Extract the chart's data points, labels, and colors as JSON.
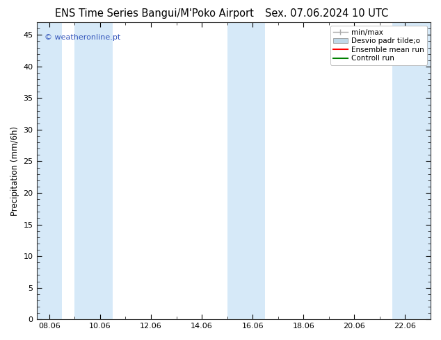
{
  "title_left": "ENS Time Series Bangui/M'Poko Airport",
  "title_right": "Sex. 07.06.2024 10 UTC",
  "ylabel": "Precipitation (mm/6h)",
  "ylim": [
    0,
    47
  ],
  "yticks": [
    0,
    5,
    10,
    15,
    20,
    25,
    30,
    35,
    40,
    45
  ],
  "xtick_labels": [
    "08.06",
    "10.06",
    "12.06",
    "14.06",
    "16.06",
    "18.06",
    "20.06",
    "22.06"
  ],
  "xlim_start": 7.5,
  "xlim_end": 23.0,
  "band_color": "#d6e9f8",
  "background_color": "#ffffff",
  "copyright_text": "© weatheronline.pt",
  "copyright_color": "#3355bb",
  "title_fontsize": 10.5,
  "tick_fontsize": 8,
  "ylabel_fontsize": 8.5,
  "figsize": [
    6.34,
    4.9
  ],
  "dpi": 100,
  "night_bands": [
    [
      7.5,
      8.5
    ],
    [
      9.0,
      10.5
    ],
    [
      15.0,
      16.5
    ],
    [
      21.5,
      23.0
    ]
  ],
  "legend_minmax_color": "#aaaaaa",
  "legend_desvio_color": "#c0d8e8",
  "legend_ensemble_color": "#ff0000",
  "legend_control_color": "#008000"
}
